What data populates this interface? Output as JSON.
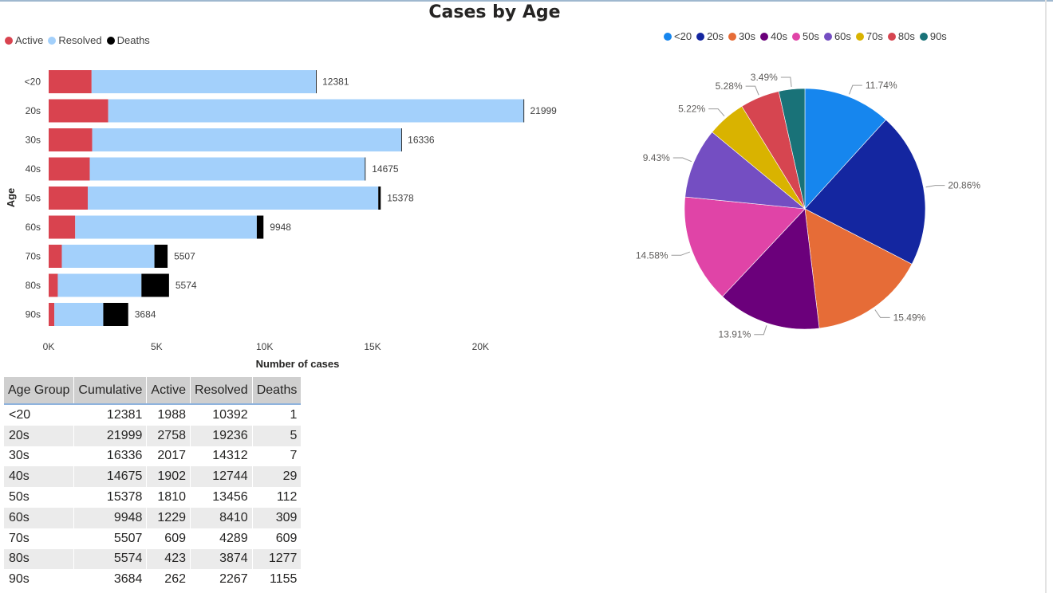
{
  "title": "Cases by Age",
  "bar_legend": [
    {
      "label": "Active",
      "color": "#d9434f"
    },
    {
      "label": "Resolved",
      "color": "#a3d0fb"
    },
    {
      "label": "Deaths",
      "color": "#000000"
    }
  ],
  "pie_legend": [
    {
      "label": "<20",
      "color": "#1686ee"
    },
    {
      "label": "20s",
      "color": "#1426a0"
    },
    {
      "label": "30s",
      "color": "#e66c37"
    },
    {
      "label": "40s",
      "color": "#6b007b"
    },
    {
      "label": "50s",
      "color": "#e044a7"
    },
    {
      "label": "60s",
      "color": "#744ec2"
    },
    {
      "label": "70s",
      "color": "#d9b300"
    },
    {
      "label": "80s",
      "color": "#d64550"
    },
    {
      "label": "90s",
      "color": "#197278"
    }
  ],
  "table": {
    "headers": [
      "Age Group",
      "Cumulative",
      "Active",
      "Resolved",
      "Deaths"
    ],
    "rows": [
      [
        "<20",
        "12381",
        "1988",
        "10392",
        "1"
      ],
      [
        "20s",
        "21999",
        "2758",
        "19236",
        "5"
      ],
      [
        "30s",
        "16336",
        "2017",
        "14312",
        "7"
      ],
      [
        "40s",
        "14675",
        "1902",
        "12744",
        "29"
      ],
      [
        "50s",
        "15378",
        "1810",
        "13456",
        "112"
      ],
      [
        "60s",
        "9948",
        "1229",
        "8410",
        "309"
      ],
      [
        "70s",
        "5507",
        "609",
        "4289",
        "609"
      ],
      [
        "80s",
        "5574",
        "423",
        "3874",
        "1277"
      ],
      [
        "90s",
        "3684",
        "262",
        "2267",
        "1155"
      ]
    ]
  },
  "chart_data": [
    {
      "type": "bar",
      "stacked": true,
      "orientation": "horizontal",
      "title": "",
      "xlabel": "Number of cases",
      "ylabel": "Age",
      "categories": [
        "<20",
        "20s",
        "30s",
        "40s",
        "50s",
        "60s",
        "70s",
        "80s",
        "90s"
      ],
      "series": [
        {
          "name": "Active",
          "color": "#d9434f",
          "values": [
            1988,
            2758,
            2017,
            1902,
            1810,
            1229,
            609,
            423,
            262
          ]
        },
        {
          "name": "Resolved",
          "color": "#a3d0fb",
          "values": [
            10392,
            19236,
            14312,
            12744,
            13456,
            8410,
            4289,
            3874,
            2267
          ]
        },
        {
          "name": "Deaths",
          "color": "#000000",
          "values": [
            1,
            5,
            7,
            29,
            112,
            309,
            609,
            1277,
            1155
          ]
        }
      ],
      "totals": [
        12381,
        21999,
        16336,
        14675,
        15378,
        9948,
        5507,
        5574,
        3684
      ],
      "xticks": [
        "0K",
        "5K",
        "10K",
        "15K",
        "20K"
      ],
      "xlim": [
        0,
        22000
      ],
      "legend": "top-left",
      "grid": false
    },
    {
      "type": "pie",
      "title": "",
      "categories": [
        "<20",
        "20s",
        "30s",
        "40s",
        "50s",
        "60s",
        "70s",
        "80s",
        "90s"
      ],
      "values": [
        11.74,
        20.86,
        15.49,
        13.91,
        14.58,
        9.43,
        5.22,
        5.28,
        3.49
      ],
      "labels": [
        "11.74%",
        "20.86%",
        "15.49%",
        "13.91%",
        "14.58%",
        "9.43%",
        "5.22%",
        "5.28%",
        "3.49%"
      ],
      "colors": [
        "#1686ee",
        "#1426a0",
        "#e66c37",
        "#6b007b",
        "#e044a7",
        "#744ec2",
        "#d9b300",
        "#d64550",
        "#197278"
      ],
      "legend": "top"
    }
  ]
}
